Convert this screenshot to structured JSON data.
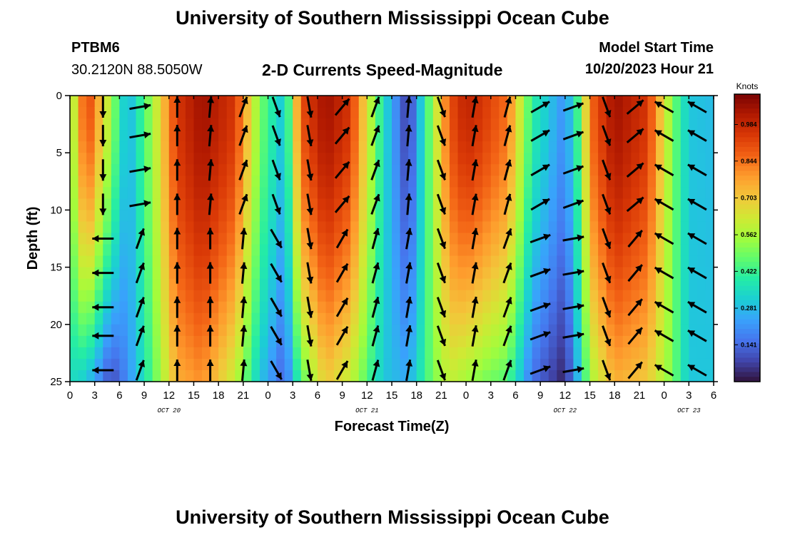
{
  "header": {
    "title": "University of Southern Mississippi Ocean Cube",
    "station_id": "PTBM6",
    "coordinates": "30.2120N  88.5050W",
    "subtitle": "2-D Currents Speed-Magnitude",
    "model_start_label": "Model Start Time",
    "model_start_value": "10/20/2023 Hour 21"
  },
  "footer": {
    "title": "University of Southern Mississippi Ocean Cube"
  },
  "chart_data": {
    "type": "heatmap",
    "title": "2-D Currents Speed-Magnitude",
    "xlabel": "Forecast Time(Z)",
    "ylabel": "Depth (ft)",
    "x_range_hours": [
      0,
      78
    ],
    "ylim": [
      0,
      25
    ],
    "y_inverted": true,
    "x_ticks": [
      "0",
      "3",
      "6",
      "9",
      "12",
      "15",
      "18",
      "21",
      "0",
      "3",
      "6",
      "9",
      "12",
      "15",
      "18",
      "21",
      "0",
      "3",
      "6",
      "9",
      "12",
      "15",
      "18",
      "21",
      "0",
      "3",
      "6"
    ],
    "y_ticks": [
      "0",
      "5",
      "10",
      "15",
      "20",
      "25"
    ],
    "date_labels": [
      {
        "label": "OCT 20",
        "hour": 12
      },
      {
        "label": "OCT 21",
        "hour": 36
      },
      {
        "label": "OCT 22",
        "hour": 60
      },
      {
        "label": "OCT 23",
        "hour": 75
      }
    ],
    "colorbar": {
      "unit": "Knots",
      "min": 0.0,
      "max": 1.1,
      "tick_values": [
        "0.984",
        "0.844",
        "0.703",
        "0.562",
        "0.422",
        "0.281",
        "0.141"
      ],
      "colors": [
        "#30123b",
        "#4145ab",
        "#4675ed",
        "#39a2fc",
        "#1bcfd4",
        "#24eca6",
        "#61fc6c",
        "#a4fc3b",
        "#d1e834",
        "#f3c63a",
        "#fe9b2d",
        "#f36315",
        "#d93806",
        "#b11901",
        "#7a0403"
      ]
    },
    "speed_profile_hours": [
      0,
      2,
      5,
      7,
      10,
      13,
      16,
      20,
      23,
      26,
      28,
      31,
      34,
      38,
      41,
      44,
      46,
      48,
      50,
      53,
      56,
      60,
      62,
      63,
      66,
      70,
      73,
      75,
      78
    ],
    "speed_surface": [
      0.5,
      0.95,
      0.55,
      0.25,
      0.55,
      0.95,
      1.05,
      0.95,
      0.5,
      0.28,
      0.9,
      1.05,
      0.95,
      0.35,
      0.05,
      0.55,
      0.9,
      1.0,
      0.95,
      0.85,
      0.4,
      0.2,
      0.5,
      0.85,
      1.05,
      0.95,
      0.5,
      0.3,
      0.28
    ],
    "speed_bottom": [
      0.35,
      0.3,
      0.08,
      0.2,
      0.45,
      0.75,
      0.8,
      0.6,
      0.3,
      0.12,
      0.45,
      0.7,
      0.6,
      0.3,
      0.25,
      0.5,
      0.6,
      0.55,
      0.5,
      0.45,
      0.15,
      0.02,
      0.35,
      0.55,
      0.75,
      0.7,
      0.5,
      0.3,
      0.3
    ],
    "arrow_depths_ft": [
      1,
      3.5,
      6.5,
      9.5,
      12.5,
      15.5,
      18.5,
      21,
      24
    ],
    "arrow_hours": [
      4,
      8.5,
      13,
      17,
      21,
      25,
      29,
      33,
      37,
      41,
      45,
      49,
      53,
      57,
      61,
      65,
      68.5,
      72,
      76
    ],
    "arrow_direction_deg_by_hour": [
      180,
      80,
      0,
      5,
      20,
      160,
      170,
      40,
      20,
      5,
      160,
      10,
      15,
      60,
      70,
      160,
      50,
      300,
      300
    ],
    "arrow_direction_deg_deep": [
      270,
      20,
      0,
      0,
      5,
      150,
      170,
      30,
      15,
      10,
      160,
      10,
      20,
      70,
      80,
      160,
      40,
      300,
      300
    ]
  }
}
